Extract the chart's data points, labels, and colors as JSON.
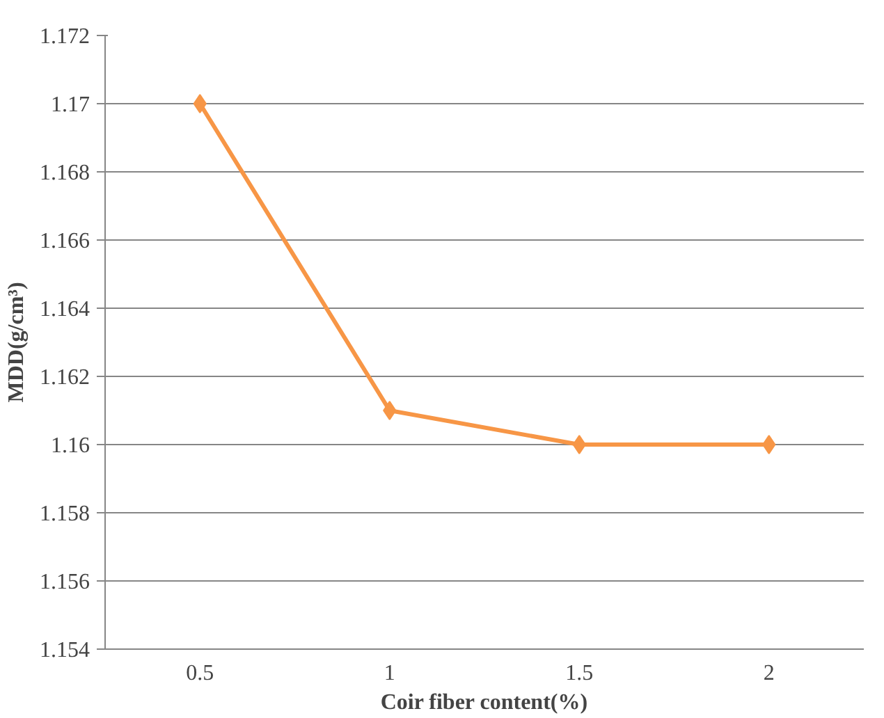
{
  "chart_data": {
    "type": "line",
    "xlabel": "Coir fiber content(%)",
    "ylabel": "MDD(g/cm³)",
    "categories": [
      "0.5",
      "1",
      "1.5",
      "2"
    ],
    "series": [
      {
        "color": "#f79646",
        "values": [
          1.17,
          1.161,
          1.16,
          1.16
        ]
      }
    ],
    "ylim": [
      1.154,
      1.172
    ],
    "yticks": [
      1.154,
      1.156,
      1.158,
      1.16,
      1.162,
      1.164,
      1.166,
      1.168,
      1.17,
      1.172
    ],
    "grid": "y",
    "marker": "diamond",
    "line_style": "solid"
  }
}
